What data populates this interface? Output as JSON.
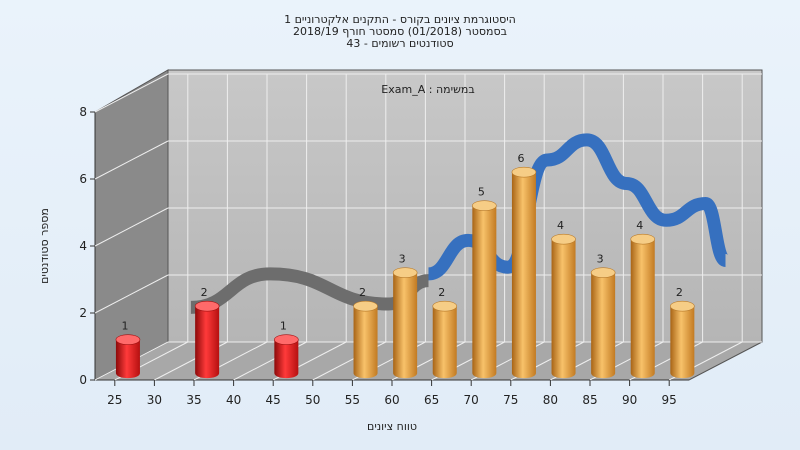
{
  "chart_data": {
    "type": "bar",
    "title": [
      "היסטוגרמת ציונים בקורס - התקנים אלקטרוניים 1",
      "בסמסטר  (01/2018)  סמסטר חורף 2018/19",
      "סטודנטים רשומים - 43"
    ],
    "annotation": "במשימה : Exam_A",
    "xlabel": "טווח ציונים",
    "ylabel": "מספר סטודנטים",
    "ylim": [
      0,
      8
    ],
    "y_ticks": [
      "0",
      "2",
      "4",
      "6",
      "8"
    ],
    "x_ticks": [
      "25",
      "30",
      "35",
      "40",
      "45",
      "50",
      "55",
      "60",
      "65",
      "70",
      "75",
      "80",
      "85",
      "90",
      "95"
    ],
    "bars": [
      {
        "x": 25,
        "value": 1,
        "label": "1",
        "group": "fail"
      },
      {
        "x": 35,
        "value": 2,
        "label": "2",
        "group": "fail"
      },
      {
        "x": 45,
        "value": 1,
        "label": "1",
        "group": "fail"
      },
      {
        "x": 55,
        "value": 2,
        "label": "2",
        "group": "pass"
      },
      {
        "x": 60,
        "value": 3,
        "label": "3",
        "group": "pass"
      },
      {
        "x": 65,
        "value": 2,
        "label": "2",
        "group": "pass"
      },
      {
        "x": 70,
        "value": 5,
        "label": "5",
        "group": "pass"
      },
      {
        "x": 75,
        "value": 6,
        "label": "6",
        "group": "pass"
      },
      {
        "x": 80,
        "value": 4,
        "label": "4",
        "group": "pass"
      },
      {
        "x": 85,
        "value": 3,
        "label": "3",
        "group": "pass"
      },
      {
        "x": 90,
        "value": 4,
        "label": "4",
        "group": "pass"
      },
      {
        "x": 95,
        "value": 2,
        "label": "2",
        "group": "pass"
      }
    ],
    "trend": {
      "gray": [
        [
          30,
          1.6
        ],
        [
          40,
          2.6
        ],
        [
          55,
          1.7
        ],
        [
          60,
          2.4
        ]
      ],
      "blue": [
        [
          60,
          2.6
        ],
        [
          65,
          3.6
        ],
        [
          70,
          2.8
        ],
        [
          75,
          6.0
        ],
        [
          80,
          6.6
        ],
        [
          85,
          5.3
        ],
        [
          90,
          4.2
        ],
        [
          95,
          4.7
        ],
        [
          97.5,
          3.0
        ]
      ]
    },
    "grid": true,
    "colors": {
      "fail": "#dd1c1c",
      "pass": "#e8a53c",
      "gray_trend": "#6d6d6d",
      "blue_trend": "#3670bf",
      "back_wall": "#c0c0c0",
      "side_wall": "#8a8a8a",
      "floor": "#a8a8a8"
    }
  }
}
